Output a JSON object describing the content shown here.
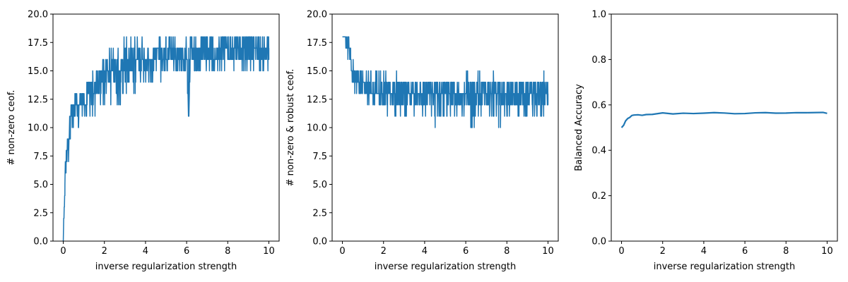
{
  "chart_data": [
    {
      "type": "line",
      "xlabel": "inverse regularization strength",
      "ylabel": "# non-zero ceof.",
      "xlim": [
        -0.5,
        10.5
      ],
      "ylim": [
        0,
        20
      ],
      "xticks": [
        0,
        2,
        4,
        6,
        8,
        10
      ],
      "yticks": [
        0.0,
        2.5,
        5.0,
        7.5,
        10.0,
        12.5,
        15.0,
        17.5,
        20.0
      ],
      "grid": false,
      "series_color": "#1f77b4",
      "series": [
        {
          "x": [
            0.0,
            0.01,
            0.02,
            0.05,
            0.08,
            0.1,
            0.15,
            0.2,
            0.25,
            0.3,
            0.35,
            0.4,
            0.5,
            0.6,
            0.7,
            0.8,
            0.9,
            1.0,
            1.2,
            1.4,
            1.6,
            1.8,
            2.0,
            2.2,
            2.5,
            2.8,
            3.0,
            3.2,
            3.5,
            3.8,
            4.0,
            4.3,
            4.6,
            5.0,
            5.3,
            5.6,
            6.0,
            6.1,
            6.2,
            6.4,
            6.7,
            7.0,
            7.3,
            7.6,
            8.0,
            8.3,
            8.6,
            9.0,
            9.3,
            9.6,
            10.0
          ],
          "y": [
            0,
            1,
            2,
            3,
            5,
            6,
            7,
            8,
            9,
            10,
            11,
            12,
            11,
            12,
            12,
            12,
            13,
            12,
            13,
            13,
            14,
            14,
            15,
            15,
            15,
            15,
            16,
            15,
            16,
            16,
            16,
            16,
            17,
            16,
            17,
            16,
            16,
            11,
            17,
            16,
            17,
            17,
            16,
            17,
            17,
            17,
            17,
            17,
            17,
            17,
            17
          ],
          "band_low": [
            0,
            1,
            2,
            3,
            4,
            5,
            6,
            7,
            7,
            9,
            9,
            10,
            10,
            10,
            10,
            10,
            11,
            10,
            11,
            11,
            11,
            12,
            12,
            12,
            12,
            12,
            13,
            13,
            13,
            14,
            14,
            14,
            14,
            15,
            15,
            14,
            15,
            11,
            15,
            15,
            15,
            15,
            15,
            15,
            15,
            15,
            15,
            15,
            15,
            15,
            15
          ],
          "band_high": [
            0,
            1,
            2,
            3,
            6,
            7,
            8,
            10,
            11,
            12,
            12,
            12,
            12,
            13,
            13,
            13,
            13,
            15,
            14,
            15,
            15,
            16,
            16,
            17,
            17,
            18,
            18,
            18,
            18,
            18,
            18,
            18,
            18,
            18,
            18,
            18,
            18,
            18,
            18,
            18,
            18,
            18,
            18,
            18,
            18,
            18,
            18,
            18,
            18,
            18,
            18
          ]
        }
      ]
    },
    {
      "type": "line",
      "xlabel": "inverse regularization strength",
      "ylabel": "# non-zero & robust ceof.",
      "xlim": [
        -0.5,
        10.5
      ],
      "ylim": [
        0,
        20
      ],
      "xticks": [
        0,
        2,
        4,
        6,
        8,
        10
      ],
      "yticks": [
        0.0,
        2.5,
        5.0,
        7.5,
        10.0,
        12.5,
        15.0,
        17.5,
        20.0
      ],
      "grid": false,
      "series_color": "#1f77b4",
      "series": [
        {
          "x": [
            0.0,
            0.1,
            0.2,
            0.3,
            0.4,
            0.5,
            0.6,
            0.7,
            0.8,
            1.0,
            1.2,
            1.4,
            1.6,
            1.8,
            2.0,
            2.3,
            2.6,
            3.0,
            3.3,
            3.6,
            4.0,
            4.3,
            4.6,
            5.0,
            5.3,
            5.6,
            6.0,
            6.3,
            6.6,
            7.0,
            7.3,
            7.6,
            8.0,
            8.3,
            8.6,
            9.0,
            9.3,
            9.6,
            9.8,
            10.0
          ],
          "y": [
            18,
            18,
            17,
            17,
            16,
            15,
            14,
            14,
            14,
            14,
            14,
            13,
            13,
            13,
            13,
            13,
            13,
            13,
            13,
            13,
            13,
            13,
            13,
            13,
            13,
            13,
            13,
            13,
            13,
            13,
            13,
            13,
            13,
            13,
            13,
            13,
            13,
            13,
            13,
            13
          ],
          "band_low": [
            18,
            17,
            17,
            16,
            16,
            14,
            13,
            12,
            13,
            13,
            12,
            12,
            12,
            12,
            12,
            11,
            11,
            10,
            11,
            11,
            11,
            11,
            10,
            11,
            11,
            11,
            11,
            10,
            11,
            11,
            11,
            10,
            11,
            11,
            11,
            11,
            11,
            10,
            11,
            12
          ],
          "band_high": [
            18,
            18,
            18,
            18,
            17,
            17,
            16,
            15,
            15,
            15,
            15,
            15,
            15,
            15,
            15,
            14,
            15,
            14,
            14,
            14,
            14,
            14,
            14,
            14,
            14,
            14,
            15,
            15,
            15,
            14,
            15,
            14,
            14,
            14,
            14,
            14,
            14,
            15,
            15,
            14
          ]
        }
      ]
    },
    {
      "type": "line",
      "xlabel": "inverse regularization strength",
      "ylabel": "Balanced Accuracy",
      "xlim": [
        -0.5,
        10.5
      ],
      "ylim": [
        0.0,
        1.0
      ],
      "xticks": [
        0,
        2,
        4,
        6,
        8,
        10
      ],
      "yticks": [
        0.0,
        0.2,
        0.4,
        0.6,
        0.8,
        1.0
      ],
      "grid": false,
      "series_color": "#1f77b4",
      "series": [
        {
          "x": [
            0.0,
            0.05,
            0.1,
            0.15,
            0.2,
            0.3,
            0.4,
            0.5,
            0.6,
            0.8,
            1.0,
            1.2,
            1.5,
            2.0,
            2.5,
            3.0,
            3.5,
            4.0,
            4.5,
            5.0,
            5.5,
            6.0,
            6.5,
            7.0,
            7.5,
            8.0,
            8.5,
            9.0,
            9.5,
            9.8,
            10.0
          ],
          "y": [
            0.5,
            0.505,
            0.51,
            0.52,
            0.53,
            0.54,
            0.545,
            0.55,
            0.553,
            0.556,
            0.558,
            0.559,
            0.56,
            0.561,
            0.562,
            0.562,
            0.563,
            0.563,
            0.563,
            0.563,
            0.563,
            0.563,
            0.563,
            0.563,
            0.563,
            0.564,
            0.564,
            0.564,
            0.566,
            0.565,
            0.562
          ]
        }
      ]
    }
  ]
}
